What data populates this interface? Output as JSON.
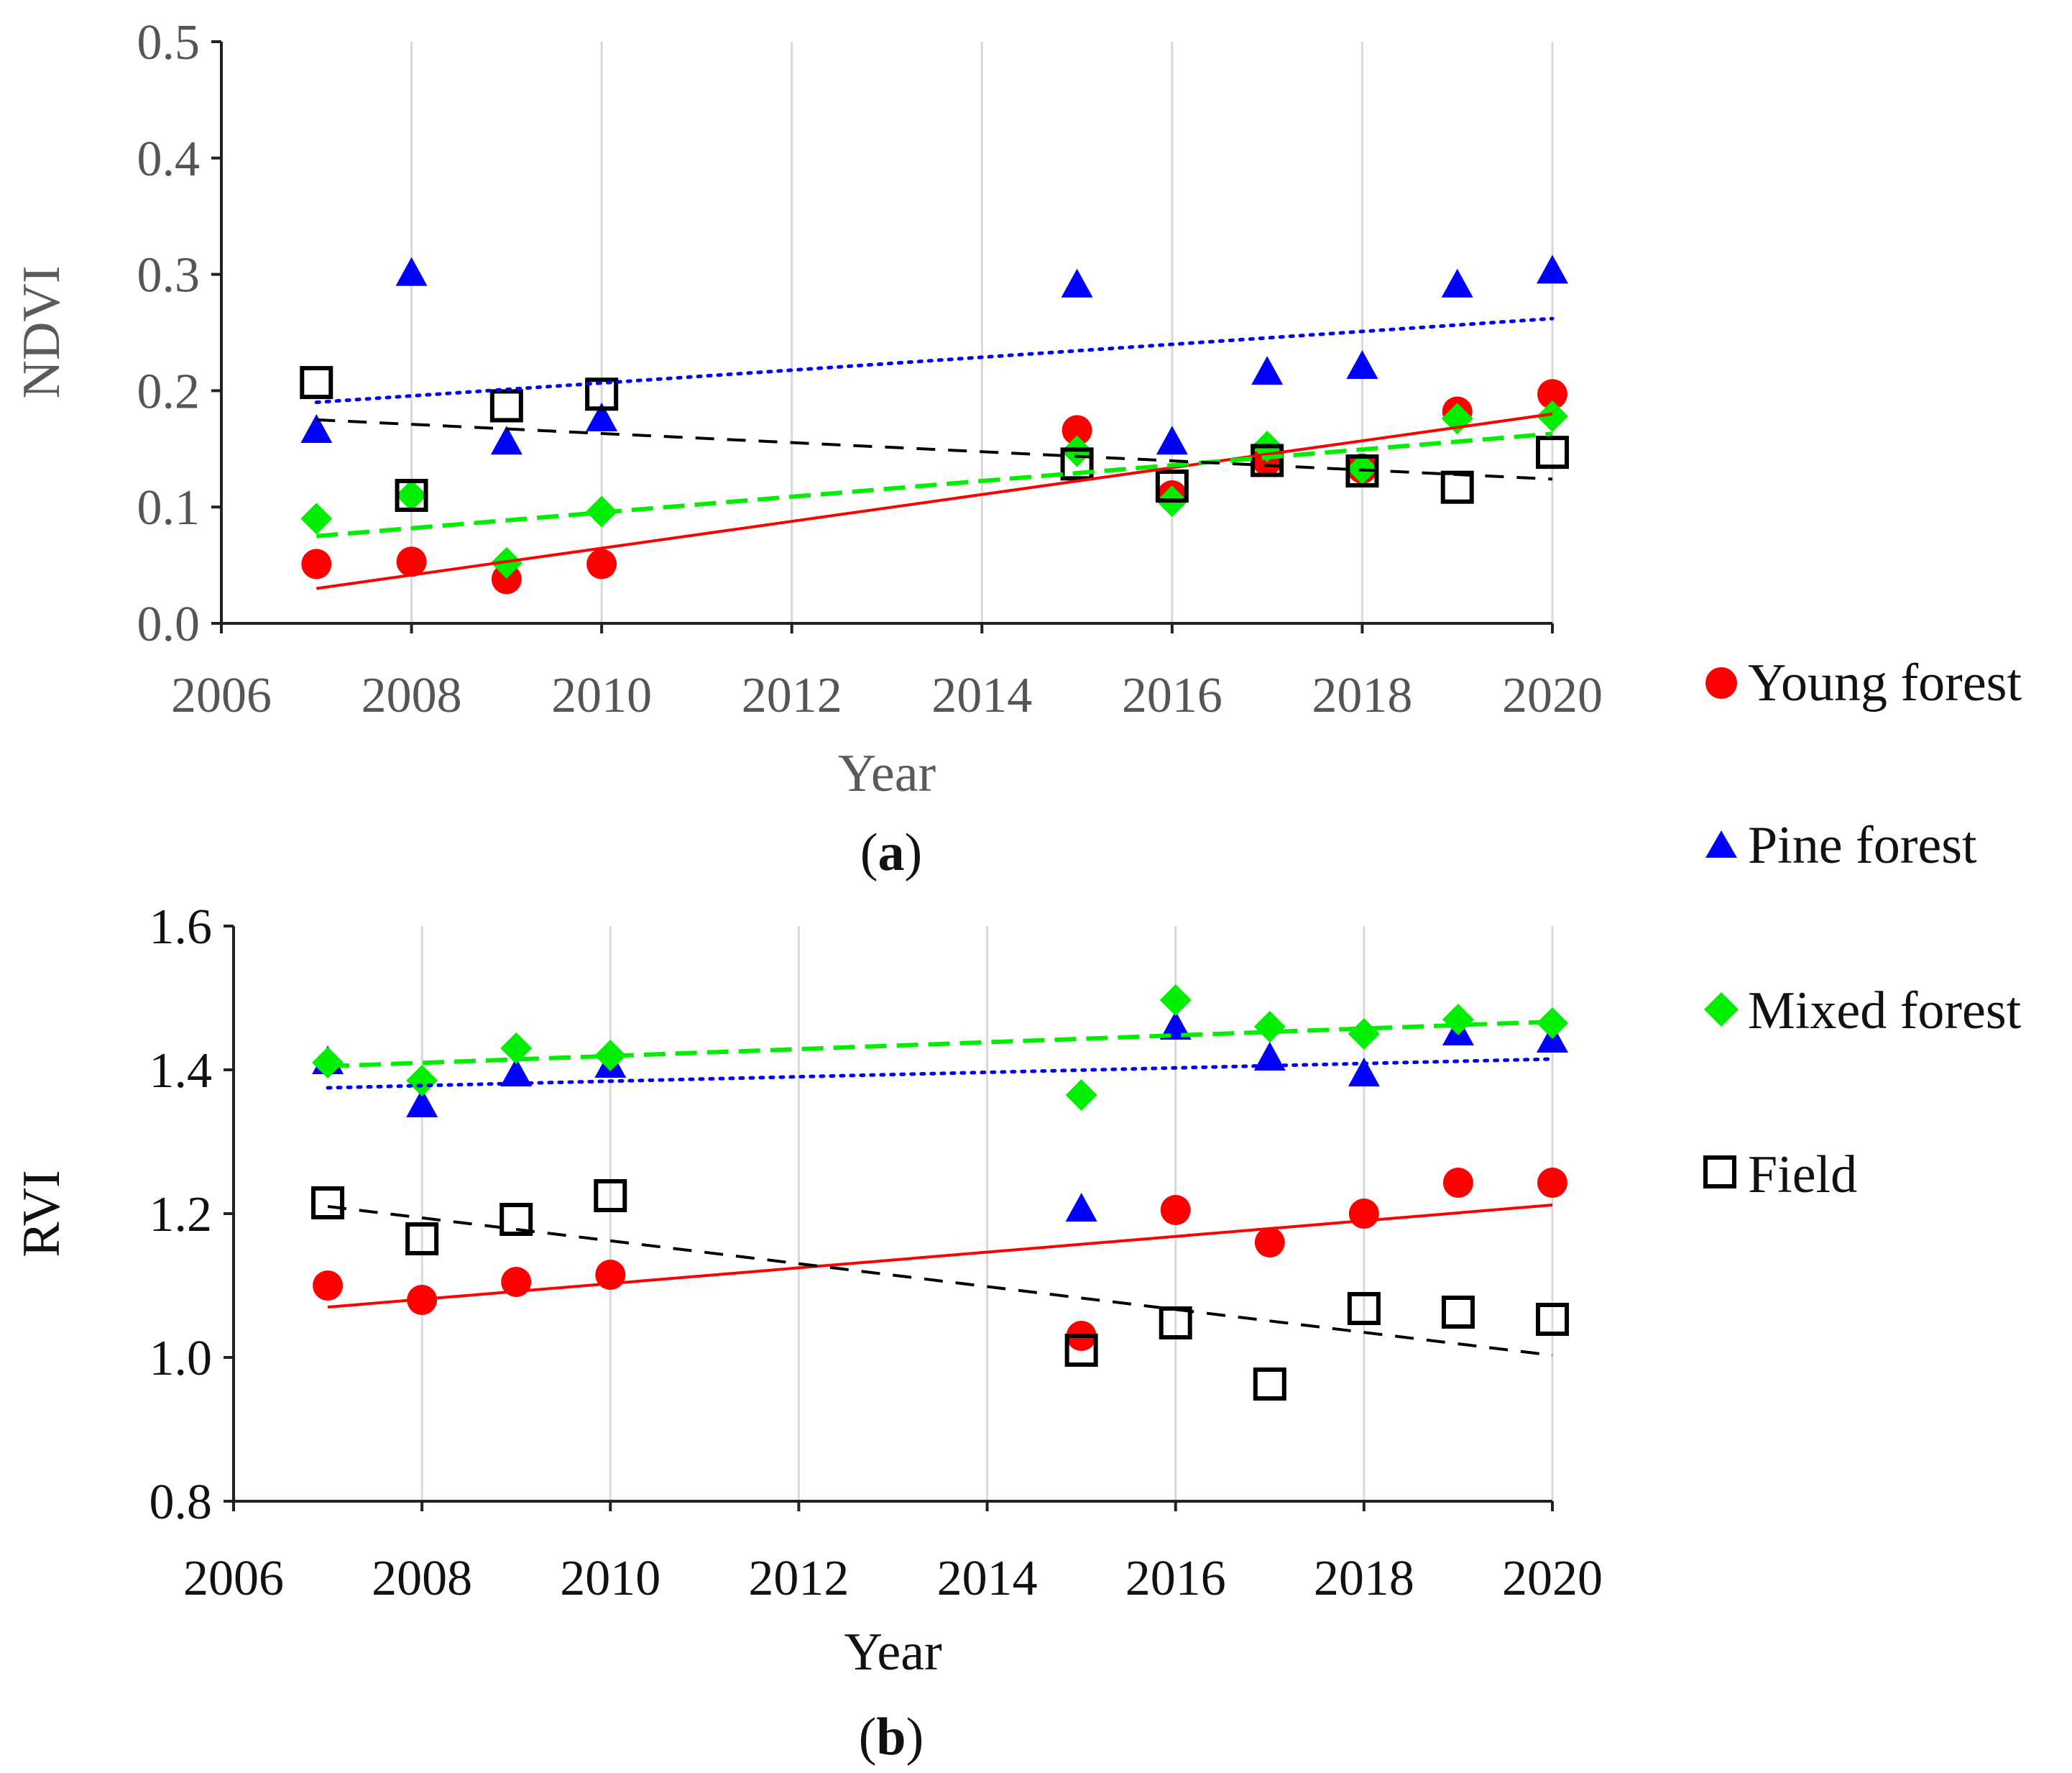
{
  "chart_data": [
    {
      "type": "scatter",
      "panel_label": "(a)",
      "panel_letter": "a",
      "xlabel": "Year",
      "ylabel": "NDVI",
      "xlim": [
        2006,
        2020
      ],
      "ylim": [
        0.0,
        0.5
      ],
      "xticks": [
        "2006",
        "2008",
        "2010",
        "2012",
        "2014",
        "2016",
        "2018",
        "2020"
      ],
      "yticks": [
        "0.0",
        "0.1",
        "0.2",
        "0.3",
        "0.4",
        "0.5"
      ],
      "grid": "vertical",
      "series": [
        {
          "name": "Young forest",
          "marker": "circle",
          "color": "#ff0000",
          "x": [
            2007,
            2008,
            2009,
            2010,
            2015,
            2016,
            2017,
            2018,
            2019,
            2020
          ],
          "y": [
            0.051,
            0.053,
            0.038,
            0.051,
            0.166,
            0.11,
            0.14,
            0.133,
            0.182,
            0.197
          ],
          "trend": {
            "style": "solid",
            "y_start": 0.03,
            "y_end": 0.18
          }
        },
        {
          "name": "Pine forest",
          "marker": "triangle",
          "color": "#0000ff",
          "x": [
            2007,
            2008,
            2009,
            2010,
            2015,
            2016,
            2017,
            2018,
            2019,
            2020
          ],
          "y": [
            0.165,
            0.3,
            0.155,
            0.175,
            0.29,
            0.155,
            0.215,
            0.22,
            0.29,
            0.302
          ],
          "trend": {
            "style": "dotted",
            "y_start": 0.19,
            "y_end": 0.262
          }
        },
        {
          "name": "Mixed forest",
          "marker": "diamond",
          "color": "#00ee00",
          "x": [
            2007,
            2008,
            2009,
            2010,
            2015,
            2016,
            2017,
            2018,
            2019,
            2020
          ],
          "y": [
            0.09,
            0.11,
            0.052,
            0.096,
            0.148,
            0.105,
            0.152,
            0.133,
            0.176,
            0.178
          ],
          "trend": {
            "style": "dashed",
            "y_start": 0.075,
            "y_end": 0.163
          }
        },
        {
          "name": "Field",
          "marker": "square-open",
          "color": "#000000",
          "x": [
            2007,
            2008,
            2009,
            2010,
            2015,
            2016,
            2017,
            2018,
            2019,
            2020
          ],
          "y": [
            0.207,
            0.11,
            0.187,
            0.197,
            0.137,
            0.118,
            0.14,
            0.131,
            0.117,
            0.147
          ],
          "trend": {
            "style": "long-dash",
            "y_start": 0.175,
            "y_end": 0.124
          }
        }
      ]
    },
    {
      "type": "scatter",
      "panel_label": "(b)",
      "panel_letter": "b",
      "xlabel": "Year",
      "ylabel": "RVI",
      "xlim": [
        2006,
        2020
      ],
      "ylim": [
        0.8,
        1.6
      ],
      "xticks": [
        "2006",
        "2008",
        "2010",
        "2012",
        "2014",
        "2016",
        "2018",
        "2020"
      ],
      "yticks": [
        "0.8",
        "1.0",
        "1.2",
        "1.4",
        "1.6"
      ],
      "grid": "vertical",
      "series": [
        {
          "name": "Young forest",
          "marker": "circle",
          "color": "#ff0000",
          "x": [
            2007,
            2008,
            2009,
            2010,
            2015,
            2016,
            2017,
            2018,
            2019,
            2020
          ],
          "y": [
            1.1,
            1.08,
            1.105,
            1.115,
            1.03,
            1.205,
            1.16,
            1.2,
            1.243,
            1.243
          ],
          "trend": {
            "style": "solid",
            "y_start": 1.07,
            "y_end": 1.212
          }
        },
        {
          "name": "Pine forest",
          "marker": "triangle",
          "color": "#0000ff",
          "x": [
            2007,
            2008,
            2009,
            2010,
            2015,
            2016,
            2017,
            2018,
            2019,
            2020
          ],
          "y": [
            1.41,
            1.35,
            1.393,
            1.405,
            1.205,
            1.458,
            1.415,
            1.393,
            1.45,
            1.44
          ],
          "trend": {
            "style": "dotted",
            "y_start": 1.375,
            "y_end": 1.415
          }
        },
        {
          "name": "Mixed forest",
          "marker": "diamond",
          "color": "#00ee00",
          "x": [
            2007,
            2008,
            2009,
            2010,
            2015,
            2016,
            2017,
            2018,
            2019,
            2020
          ],
          "y": [
            1.41,
            1.385,
            1.43,
            1.42,
            1.365,
            1.497,
            1.46,
            1.45,
            1.47,
            1.465
          ],
          "trend": {
            "style": "dashed",
            "y_start": 1.405,
            "y_end": 1.467
          }
        },
        {
          "name": "Field",
          "marker": "square-open",
          "color": "#000000",
          "x": [
            2007,
            2008,
            2009,
            2010,
            2015,
            2016,
            2017,
            2018,
            2019,
            2020
          ],
          "y": [
            1.215,
            1.165,
            1.192,
            1.225,
            1.01,
            1.048,
            0.963,
            1.068,
            1.063,
            1.053
          ],
          "trend": {
            "style": "long-dash",
            "y_start": 1.21,
            "y_end": 1.003
          }
        }
      ]
    }
  ],
  "legend": {
    "placement": "right",
    "items": [
      {
        "label": "Young forest",
        "marker": "circle",
        "color": "#ff0000"
      },
      {
        "label": "Pine forest",
        "marker": "triangle",
        "color": "#0000ff"
      },
      {
        "label": "Mixed forest",
        "marker": "diamond",
        "color": "#00ee00"
      },
      {
        "label": "Field",
        "marker": "square-open",
        "color": "#000000"
      }
    ]
  }
}
